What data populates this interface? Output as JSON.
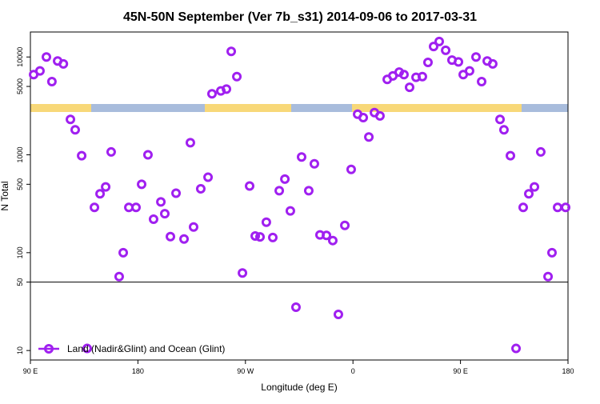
{
  "chart_data": {
    "type": "scatter",
    "title": "45N-50N September (Ver 7b_s31)   2014-09-06 to 2017-03-31",
    "x_label": "Longitude (deg E)",
    "y_label": "N Total",
    "log_y": true,
    "legend_position": "bottom-left",
    "hline": 50,
    "xlim": [
      90,
      540
    ],
    "xticks": [
      {
        "value": 90,
        "label": "90 E"
      },
      {
        "value": 180,
        "label": "180"
      },
      {
        "value": 270,
        "label": "90 W"
      },
      {
        "value": 360,
        "label": "0"
      },
      {
        "value": 450,
        "label": "90 E"
      },
      {
        "value": 540,
        "label": "180"
      }
    ],
    "ylim": [
      8,
      18000
    ],
    "yticks": [
      10,
      50,
      100,
      500,
      1000,
      5000,
      10000
    ],
    "series": [
      {
        "name": "Land (Nadir&Glint) and Ocean (Glint)",
        "color": "#a020f0",
        "x": [
          92.7,
          98,
          103.4,
          108,
          112.8,
          117.6,
          123.5,
          127.5,
          132.9,
          137.5,
          143.6,
          148.3,
          153,
          157.6,
          164.3,
          167.7,
          172.4,
          178.4,
          183.1,
          188.4,
          193.1,
          199.2,
          202.5,
          207.2,
          211.9,
          218.6,
          223.9,
          226.6,
          232.6,
          238.7,
          242,
          249.4,
          254.1,
          258.1,
          262.8,
          267.5,
          273.5,
          278.2,
          282.2,
          287.5,
          292.9,
          298.3,
          303,
          307.6,
          312.3,
          317,
          323,
          327.7,
          332.4,
          337.8,
          343.1,
          347.8,
          353.2,
          358.5,
          363.9,
          368.6,
          373.3,
          378,
          382.6,
          388.7,
          393.4,
          398.7,
          402.7,
          407.4,
          412.8,
          418.1,
          422.8,
          427.5,
          432.2,
          437.6,
          442.9,
          448.3,
          452.3,
          457.6,
          463,
          467.7,
          472.4,
          477,
          483.1,
          486.4,
          491.8,
          496.5,
          502.5,
          507.2,
          511.9,
          517.2,
          523.3,
          526.6,
          531.3,
          538
        ],
        "values": [
          6600,
          7200,
          10000,
          5600,
          9100,
          8500,
          2300,
          1800,
          980,
          10.5,
          290,
          400,
          470,
          1070,
          57,
          100,
          290,
          290,
          500,
          1000,
          220,
          330,
          250,
          146,
          405,
          138,
          1330,
          183,
          450,
          590,
          4200,
          4500,
          4700,
          11400,
          6300,
          62,
          480,
          148,
          145,
          205,
          143,
          430,
          565,
          267,
          27.7,
          950,
          430,
          810,
          152,
          150,
          133,
          23.4,
          190,
          710,
          2600,
          2400,
          1520,
          2700,
          2500,
          5900,
          6400,
          7000,
          6600,
          4900,
          6200,
          6300,
          8800,
          12800,
          14400,
          11700,
          9300,
          8900,
          6600,
          7200,
          10000,
          5600,
          9100,
          8500,
          2300,
          1800,
          980,
          10.5,
          290,
          400,
          470,
          1070,
          57,
          100,
          290,
          290
        ]
      }
    ]
  }
}
